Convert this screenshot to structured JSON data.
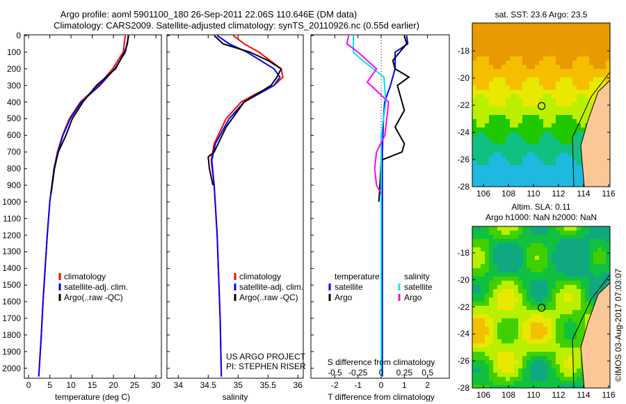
{
  "title_line1": "Argo profile: aoml 5901100_180 26-Sep-2011 22.06S 110.646E (DM data)",
  "title_line2": "Climatology: CARS2009. Satellite-adjusted climatology: synTS_20110926.nc (0.55d earlier)",
  "credit": "US ARGO PROJECT",
  "pi": "PI: STEPHEN RISER",
  "stamp": "©IMOS 03-Aug-2017 07:03:07",
  "colors": {
    "climatology": "#ff0000",
    "satellite": "#0000ff",
    "argo": "#000000",
    "sal_satellite": "#00e5e5",
    "sal_argo": "#ff00ff",
    "land": "#f9c896"
  },
  "legend": {
    "climatology": "climatology",
    "satellite": "satellite-adj. clim.",
    "argo": "Argo(..raw -QC)"
  },
  "diff_legend": {
    "temperature": "temperature",
    "salinity": "salinity",
    "satellite": "satellite",
    "argo": "Argo"
  },
  "map_top": {
    "title": "sat. SST: 23.6 Argo: 23.5",
    "lon_ticks": [
      "106",
      "108",
      "110",
      "112",
      "114",
      "116"
    ],
    "lat_ticks": [
      "-18",
      "-20",
      "-22",
      "-24",
      "-26",
      "-28"
    ]
  },
  "map_bottom": {
    "title1": "Altim. SLA: 0.11",
    "title2": "Argo h1000: NaN h2000: NaN",
    "lon_ticks": [
      "106",
      "108",
      "110",
      "112",
      "114",
      "116"
    ],
    "lat_ticks": [
      "-18",
      "-20",
      "-22",
      "-24",
      "-26",
      "-28"
    ]
  },
  "float_position": {
    "lon": 110.646,
    "lat": -22.06
  },
  "chart_data": [
    {
      "type": "line",
      "xlabel": "temperature (deg C)",
      "xlim": [
        -1,
        31.3
      ],
      "ylim": [
        0,
        2060
      ],
      "xticks": [
        "0",
        "5",
        "10",
        "15",
        "20",
        "25",
        "30"
      ],
      "yticks": [
        "0",
        "100",
        "200",
        "300",
        "400",
        "500",
        "600",
        "700",
        "800",
        "900",
        "1000",
        "1100",
        "1200",
        "1300",
        "1400",
        "1500",
        "1600",
        "1700",
        "1800",
        "1900",
        "2000"
      ],
      "series": [
        {
          "name": "climatology",
          "color": "#ff0000",
          "depth": [
            0,
            100,
            200,
            300,
            400,
            500,
            600,
            700,
            800,
            900,
            1000,
            1200,
            1400,
            1600,
            1800,
            2050
          ],
          "values": [
            22.8,
            22.3,
            19.8,
            16.5,
            12.2,
            9.6,
            8.0,
            6.8,
            6.0,
            5.5,
            5.0,
            4.4,
            3.9,
            3.4,
            3.0,
            2.4
          ]
        },
        {
          "name": "satellite-adj. clim.",
          "color": "#0000ff",
          "depth": [
            0,
            100,
            200,
            300,
            400,
            500,
            600,
            700,
            800,
            900,
            1000,
            1200,
            1400,
            1600,
            1800,
            2050
          ],
          "values": [
            23.6,
            22.8,
            20.3,
            16.8,
            12.4,
            9.8,
            8.1,
            6.9,
            6.0,
            5.5,
            5.0,
            4.4,
            3.9,
            3.4,
            3.0,
            2.4
          ]
        },
        {
          "name": "Argo(..raw -QC)",
          "color": "#000000",
          "depth": [
            0,
            50,
            100,
            200,
            300,
            400,
            500,
            600,
            700,
            800,
            950
          ],
          "values": [
            23.5,
            23.3,
            22.6,
            20.5,
            16.0,
            12.8,
            10.3,
            8.8,
            7.0,
            6.1,
            5.3
          ]
        }
      ]
    },
    {
      "type": "line",
      "xlabel": "salinity",
      "xlim": [
        33.81,
        36.09
      ],
      "ylim": [
        0,
        2060
      ],
      "xticks": [
        "34",
        "34.5",
        "35",
        "35.5",
        "36"
      ],
      "series": [
        {
          "name": "climatology",
          "color": "#ff0000",
          "depth": [
            0,
            50,
            100,
            200,
            250,
            300,
            350,
            400,
            500,
            650,
            750,
            900,
            1200,
            1700,
            2050
          ],
          "values": [
            34.92,
            35.1,
            35.35,
            35.72,
            35.75,
            35.6,
            35.3,
            35.05,
            34.8,
            34.6,
            34.55,
            34.6,
            34.65,
            34.7,
            34.72
          ]
        },
        {
          "name": "satellite-adj. clim.",
          "color": "#0000ff",
          "depth": [
            0,
            50,
            100,
            200,
            250,
            300,
            350,
            400,
            500,
            650,
            750,
            900,
            1200,
            1700,
            2050
          ],
          "values": [
            34.65,
            34.85,
            35.15,
            35.6,
            35.7,
            35.6,
            35.35,
            35.1,
            34.85,
            34.62,
            34.56,
            34.6,
            34.65,
            34.7,
            34.72
          ]
        },
        {
          "name": "Argo(..raw -QC)",
          "color": "#000000",
          "depth": [
            0,
            50,
            100,
            150,
            200,
            250,
            300,
            400,
            550,
            700,
            730,
            800,
            900
          ],
          "values": [
            34.6,
            34.75,
            35.2,
            35.5,
            35.72,
            35.65,
            35.55,
            35.1,
            34.8,
            34.6,
            34.5,
            34.52,
            34.58
          ]
        }
      ]
    },
    {
      "type": "line",
      "xlabel": "T difference from climatology",
      "xlabel2": "S difference from climatology",
      "xlim": [
        -3.03,
        2.94
      ],
      "ylim": [
        0,
        2060
      ],
      "xticks": [
        "-2",
        "-1",
        "0",
        "1",
        "2"
      ],
      "xticks2": [
        "-0.5",
        "-0.25",
        "0",
        "0.25",
        "0.5"
      ],
      "series": [
        {
          "name": "temperature satellite",
          "color": "#0000ff",
          "scale": 1,
          "depth": [
            0,
            50,
            100,
            200,
            300,
            400,
            500,
            700,
            1000,
            2050
          ],
          "values": [
            1.1,
            1.15,
            0.6,
            0.6,
            0.4,
            0.15,
            0.1,
            0.05,
            0.05,
            0.05
          ]
        },
        {
          "name": "temperature Argo",
          "color": "#000000",
          "scale": 1,
          "depth": [
            0,
            50,
            100,
            150,
            200,
            250,
            300,
            350,
            450,
            550,
            650,
            700,
            750,
            900,
            1000
          ],
          "values": [
            1.0,
            1.1,
            0.8,
            0.5,
            0.6,
            1.2,
            0.7,
            0.8,
            1.0,
            0.6,
            1.0,
            0.9,
            0.0,
            -0.05,
            -0.1
          ]
        },
        {
          "name": "salinity satellite",
          "color": "#00e5e5",
          "scale": 4,
          "depth": [
            0,
            50,
            100,
            150,
            250,
            400,
            600,
            2050
          ],
          "values": [
            -0.3,
            -0.3,
            -0.3,
            -0.2,
            0.03,
            0.05,
            0.0,
            0.0
          ]
        },
        {
          "name": "salinity Argo",
          "color": "#ff00ff",
          "scale": 4,
          "depth": [
            0,
            50,
            100,
            150,
            200,
            280,
            400,
            500,
            600,
            700,
            800,
            900,
            950
          ],
          "values": [
            -0.35,
            -0.37,
            -0.25,
            -0.15,
            -0.05,
            -0.15,
            0.08,
            0.06,
            0.04,
            -0.05,
            -0.07,
            -0.05,
            0.0
          ]
        }
      ]
    }
  ]
}
